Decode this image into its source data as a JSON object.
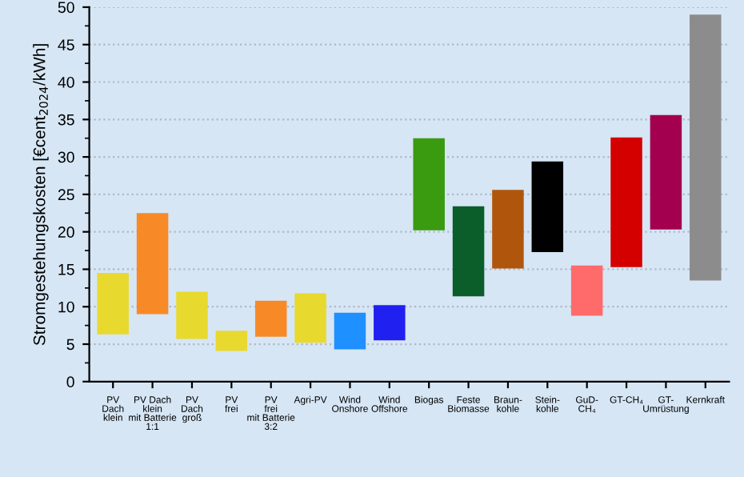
{
  "chart_data": {
    "type": "bar",
    "ylabel": "Stromgestehungskosten [€cent$_{2024}$/kWh]",
    "categories": [
      "PV\nDach\nklein",
      "PV Dach\nklein\nmit Batterie\n1:1",
      "PV\nDach\ngroß",
      "PV\nfrei",
      "PV\nfrei\nmit Batterie\n3:2",
      "Agri-PV",
      "Wind\nOnshore",
      "Wind\nOffshore",
      "Biogas",
      "Feste\nBiomasse",
      "Braun-\nkohle",
      "Stein-\nkohle",
      "GuD-\nCH₄",
      "GT-CH₄",
      "GT-\nUmrüstung",
      "Kernkraft"
    ],
    "base": [
      6.3,
      9.0,
      5.7,
      4.1,
      6.0,
      5.2,
      4.3,
      5.5,
      20.2,
      11.4,
      15.1,
      17.3,
      8.8,
      15.3,
      20.3,
      13.5
    ],
    "values": [
      8.2,
      13.5,
      6.3,
      2.7,
      4.8,
      6.6,
      4.9,
      4.7,
      12.3,
      12.0,
      10.5,
      12.1,
      6.7,
      17.3,
      15.3,
      35.5
    ],
    "colors": [
      "#e8d92e",
      "#f78a26",
      "#e8d92e",
      "#e8d92e",
      "#f78a26",
      "#e8d92e",
      "#1e90ff",
      "#2020f0",
      "#3a9a10",
      "#0b5e2a",
      "#b0560c",
      "#000000",
      "#ff6b6b",
      "#d40000",
      "#a3004f",
      "#8c8c8c"
    ],
    "ylim": [
      0,
      50
    ],
    "yticks": [
      0,
      5,
      10,
      15,
      20,
      25,
      30,
      35,
      40,
      45,
      50
    ],
    "grid": "y"
  }
}
